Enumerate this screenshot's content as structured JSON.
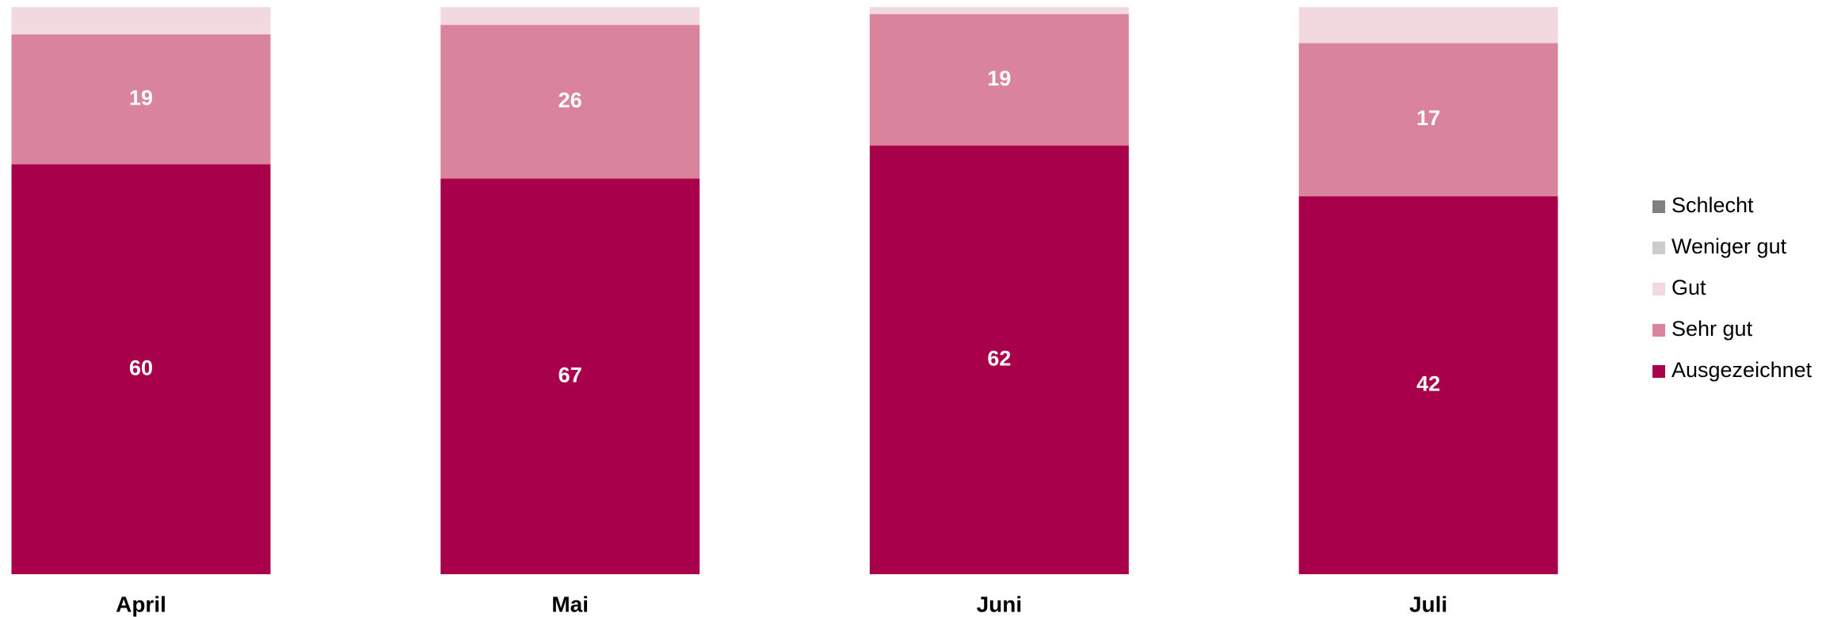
{
  "chart_data": {
    "type": "stacked_bar_normalized",
    "categories": [
      "April",
      "Mai",
      "Juni",
      "Juli"
    ],
    "series": [
      {
        "name": "Ausgezeichnet",
        "color": "#a8004a",
        "values": [
          60,
          67,
          62,
          42
        ]
      },
      {
        "name": "Sehr gut",
        "color": "#d9839c",
        "values": [
          19,
          26,
          19,
          17
        ]
      },
      {
        "name": "Gut",
        "color": "#f2d9e0",
        "values": [
          4,
          3,
          1,
          4
        ]
      },
      {
        "name": "Weniger gut",
        "color": "#cccccc",
        "values": [
          0,
          0,
          0,
          0
        ]
      },
      {
        "name": "Schlecht",
        "color": "#808080",
        "values": [
          0,
          0,
          0,
          0
        ]
      }
    ],
    "legend": "right"
  }
}
